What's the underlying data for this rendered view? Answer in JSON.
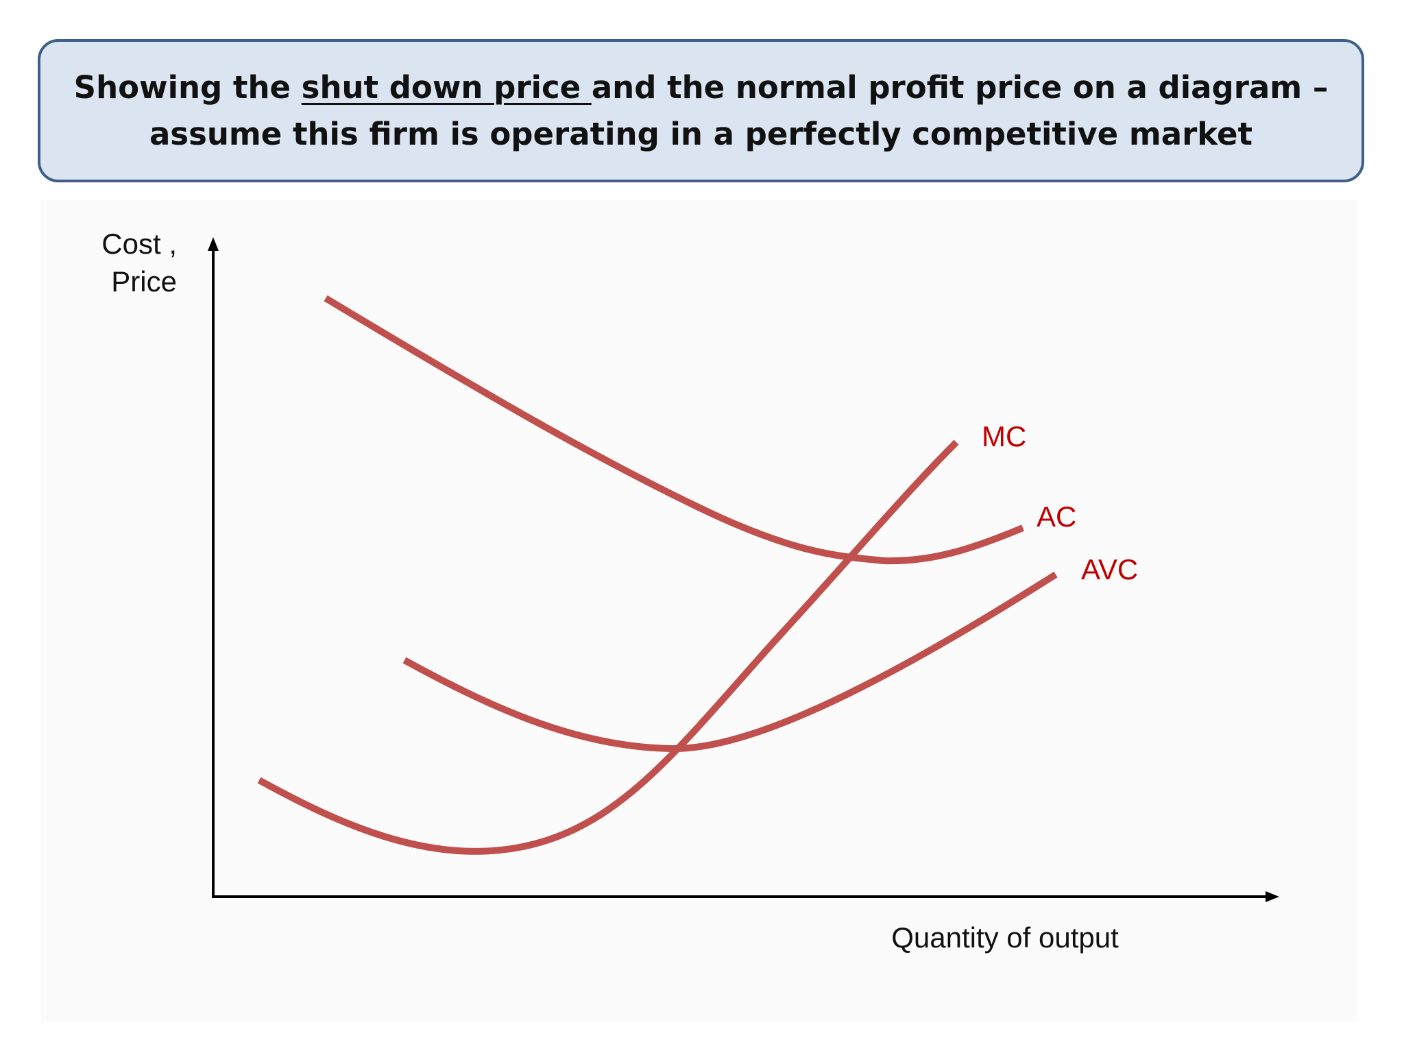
{
  "title": {
    "line1_pre": "Showing the ",
    "line1_underlined": "shut down price ",
    "line1_post": "and the normal profit price on a diagram –",
    "line2": "assume this firm is operating in a perfectly competitive market"
  },
  "diagram": {
    "y_axis_label_line1": "Cost ,",
    "y_axis_label_line2": "Price",
    "x_axis_label": "Quantity of output",
    "curves": {
      "mc": "MC",
      "ac": "AC",
      "avc": "AVC"
    },
    "curve_color": "#c0504d",
    "label_color": "#c00000"
  },
  "colors": {
    "title_box_fill": "#dbe5f1",
    "title_box_border": "#3d5f8a"
  }
}
